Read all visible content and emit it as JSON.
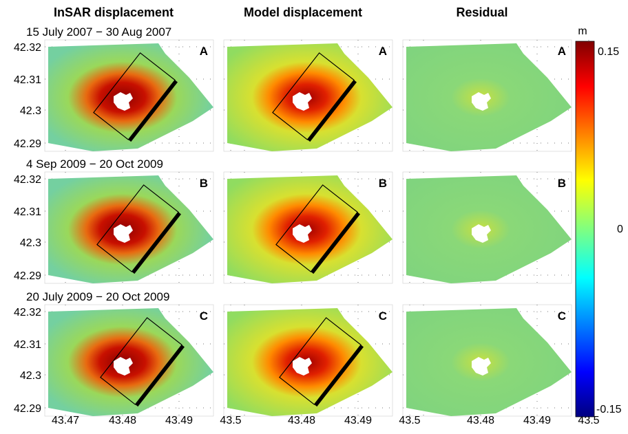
{
  "columns": [
    "InSAR displacement",
    "Model displacement",
    "Residual"
  ],
  "rows": [
    {
      "title": "15 July 2007 − 30 Aug 2007",
      "letter": "A"
    },
    {
      "title": "4 Sep 2009 − 20 Oct 2009",
      "letter": "B"
    },
    {
      "title": "20 July 2009 − 20 Oct 2009",
      "letter": "C"
    }
  ],
  "y_tick_labels": [
    "42.32",
    "42.31",
    "42.3",
    "42.29"
  ],
  "x_tick_labels": [
    "43.47",
    "43.48",
    "43.49",
    "43.5"
  ],
  "colorbar": {
    "unit": "m",
    "top": "0.15",
    "middle": "0",
    "bottom": "-0.15"
  }
}
